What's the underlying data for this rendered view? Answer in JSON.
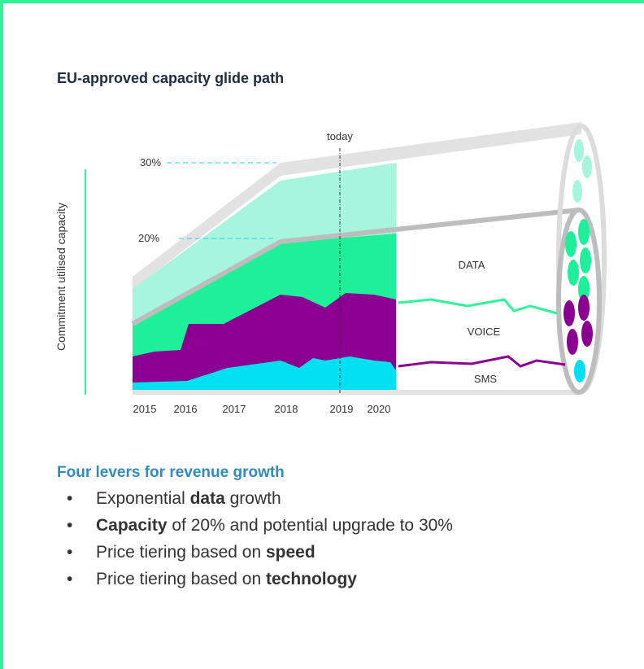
{
  "title": "EU-approved capacity glide path",
  "y_axis_label": "Commitment utilised capacity",
  "today_label": "today",
  "capacity_labels": [
    "30%",
    "20%"
  ],
  "years": [
    "2015",
    "2016",
    "2017",
    "2018",
    "2019",
    "2020"
  ],
  "layers": [
    "DATA",
    "VOICE",
    "SMS"
  ],
  "levers": {
    "heading": "Four levers for revenue growth",
    "bullets": [
      [
        "Exponential ",
        "data",
        " growth"
      ],
      [
        "Capacity",
        " of 20% and potential upgrade to 30%"
      ],
      [
        "Price tiering based on ",
        "speed"
      ],
      [
        "Price tiering based on ",
        "technology"
      ]
    ]
  }
}
